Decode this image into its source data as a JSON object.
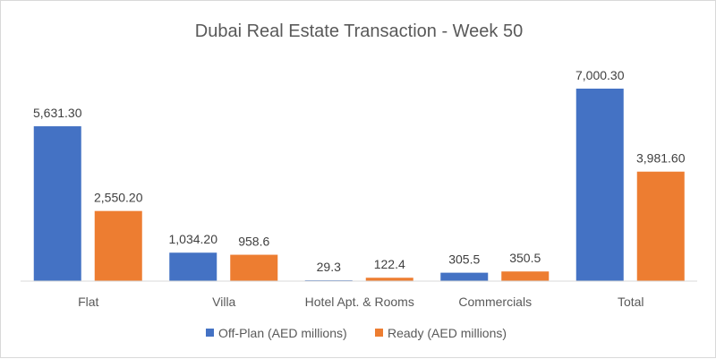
{
  "chart_data": {
    "type": "bar",
    "title": "Dubai Real Estate Transaction - Week 50",
    "categories": [
      "Flat",
      "Villa",
      "Hotel Apt. & Rooms",
      "Commercials",
      "Total"
    ],
    "series": [
      {
        "name": "Off-Plan (AED millions)",
        "color": "#4472C4",
        "values": [
          5631.3,
          1034.2,
          29.3,
          305.5,
          7000.3
        ],
        "labels": [
          "5,631.30",
          "1,034.20",
          "29.3",
          "305.5",
          "7,000.30"
        ]
      },
      {
        "name": "Ready (AED millions)",
        "color": "#ED7D31",
        "values": [
          2550.2,
          958.6,
          122.4,
          350.5,
          3981.6
        ],
        "labels": [
          "2,550.20",
          "958.6",
          "122.4",
          "350.5",
          "3,981.60"
        ]
      }
    ],
    "xlabel": "",
    "ylabel": "",
    "ylim": [
      0,
      7000.3
    ],
    "grid": false,
    "legend": "bottom"
  }
}
